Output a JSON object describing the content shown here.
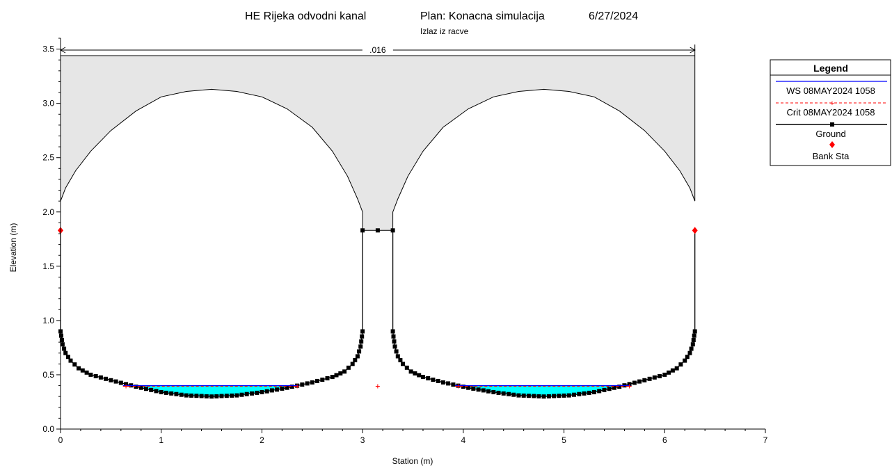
{
  "chart_data": {
    "type": "cross-section",
    "title_parts": [
      "HE Rijeka odvodni kanal",
      "Plan: Konacna simulacija",
      "6/27/2024"
    ],
    "subtitle": "Izlaz iz racve",
    "xlabel": "Station (m)",
    "ylabel": "Elevation (m)",
    "xlim": [
      0,
      7
    ],
    "ylim": [
      0,
      3.6
    ],
    "x_ticks": [
      0,
      1,
      2,
      3,
      4,
      5,
      6,
      7
    ],
    "x_tick_labels": [
      "0",
      "1",
      "2",
      "3",
      "4",
      "5",
      "6",
      "7"
    ],
    "y_ticks": [
      0,
      0.5,
      1,
      1.5,
      2,
      2.5,
      3,
      3.5
    ],
    "y_tick_labels": [
      "0.0",
      "0.5",
      "1.0",
      "1.5",
      "2.0",
      "2.5",
      "3.0",
      "3.5"
    ],
    "manning_n": {
      "label": ".016",
      "x_start": 0,
      "x_end": 6.3
    },
    "lid": {
      "elevation": 3.44,
      "x_start": 0,
      "x_end": 6.3
    },
    "ground": {
      "left_barrel": [
        [
          0.0,
          2.1
        ],
        [
          0.05,
          2.22
        ],
        [
          0.15,
          2.38
        ],
        [
          0.3,
          2.56
        ],
        [
          0.5,
          2.75
        ],
        [
          0.75,
          2.93
        ],
        [
          1.0,
          3.06
        ],
        [
          1.25,
          3.11
        ],
        [
          1.5,
          3.13
        ],
        [
          1.75,
          3.11
        ],
        [
          2.0,
          3.06
        ],
        [
          2.25,
          2.95
        ],
        [
          2.5,
          2.78
        ],
        [
          2.7,
          2.56
        ],
        [
          2.85,
          2.33
        ],
        [
          2.95,
          2.12
        ],
        [
          3.0,
          2.0
        ],
        [
          3.0,
          1.83
        ]
      ],
      "right_barrel": [
        [
          3.3,
          1.83
        ],
        [
          3.3,
          2.0
        ],
        [
          3.35,
          2.12
        ],
        [
          3.45,
          2.33
        ],
        [
          3.6,
          2.56
        ],
        [
          3.8,
          2.78
        ],
        [
          4.05,
          2.95
        ],
        [
          4.3,
          3.06
        ],
        [
          4.55,
          3.11
        ],
        [
          4.8,
          3.13
        ],
        [
          5.05,
          3.11
        ],
        [
          5.3,
          3.06
        ],
        [
          5.55,
          2.93
        ],
        [
          5.8,
          2.75
        ],
        [
          6.0,
          2.56
        ],
        [
          6.15,
          2.38
        ],
        [
          6.25,
          2.22
        ],
        [
          6.3,
          2.1
        ]
      ],
      "pier_top": [
        [
          3.0,
          1.83
        ],
        [
          3.15,
          1.83
        ],
        [
          3.3,
          1.83
        ]
      ],
      "left_invert": [
        [
          0.0,
          1.83
        ],
        [
          0.0,
          0.9
        ],
        [
          0.02,
          0.78
        ],
        [
          0.05,
          0.7
        ],
        [
          0.1,
          0.63
        ],
        [
          0.18,
          0.56
        ],
        [
          0.3,
          0.5
        ],
        [
          0.5,
          0.45
        ],
        [
          0.75,
          0.39
        ],
        [
          1.0,
          0.34
        ],
        [
          1.25,
          0.31
        ],
        [
          1.5,
          0.3
        ],
        [
          1.75,
          0.31
        ],
        [
          2.0,
          0.34
        ],
        [
          2.25,
          0.38
        ],
        [
          2.5,
          0.43
        ],
        [
          2.7,
          0.48
        ],
        [
          2.82,
          0.53
        ],
        [
          2.9,
          0.6
        ],
        [
          2.95,
          0.67
        ],
        [
          2.98,
          0.76
        ],
        [
          3.0,
          0.9
        ],
        [
          3.0,
          1.83
        ]
      ],
      "right_invert": [
        [
          3.3,
          1.83
        ],
        [
          3.3,
          0.9
        ],
        [
          3.32,
          0.76
        ],
        [
          3.35,
          0.67
        ],
        [
          3.4,
          0.6
        ],
        [
          3.48,
          0.53
        ],
        [
          3.6,
          0.48
        ],
        [
          3.8,
          0.43
        ],
        [
          4.05,
          0.38
        ],
        [
          4.3,
          0.34
        ],
        [
          4.55,
          0.31
        ],
        [
          4.8,
          0.3
        ],
        [
          5.05,
          0.31
        ],
        [
          5.3,
          0.34
        ],
        [
          5.55,
          0.39
        ],
        [
          5.8,
          0.45
        ],
        [
          6.0,
          0.5
        ],
        [
          6.12,
          0.56
        ],
        [
          6.2,
          0.63
        ],
        [
          6.25,
          0.7
        ],
        [
          6.28,
          0.78
        ],
        [
          6.3,
          0.9
        ],
        [
          6.3,
          1.83
        ]
      ]
    },
    "water_surface": {
      "name": "WS 08MAY2024 1058",
      "elevation": 0.4,
      "spans": [
        [
          0.62,
          2.36
        ],
        [
          3.92,
          5.66
        ]
      ]
    },
    "critical_depth": {
      "name": "Crit 08MAY2024 1058",
      "elevation": 0.4,
      "spans": [
        [
          0.62,
          2.36
        ],
        [
          3.92,
          5.66
        ]
      ],
      "markers": [
        [
          0.65,
          0.4
        ],
        [
          2.35,
          0.4
        ],
        [
          3.95,
          0.4
        ],
        [
          5.65,
          0.4
        ],
        [
          3.15,
          0.4
        ]
      ]
    },
    "bank_stations": [
      [
        0.0,
        1.83
      ],
      [
        6.3,
        1.83
      ]
    ],
    "legend": {
      "title": "Legend",
      "position": "right",
      "entries": [
        {
          "label": "WS 08MAY2024 1058",
          "color": "#0000ff",
          "style": "solid"
        },
        {
          "label": "Crit 08MAY2024 1058",
          "color": "#ff0000",
          "style": "dashed-plus"
        },
        {
          "label": "Ground",
          "color": "#000000",
          "style": "line-square"
        },
        {
          "label": "Bank Sta",
          "color": "#ff0000",
          "style": "diamond"
        }
      ]
    },
    "colors": {
      "water_fill": "#00ffff",
      "concrete_fill": "#e6e6e6",
      "ws_line": "#0000ff",
      "crit_line": "#ff0000",
      "ground": "#000000",
      "bank": "#ff0000"
    }
  }
}
